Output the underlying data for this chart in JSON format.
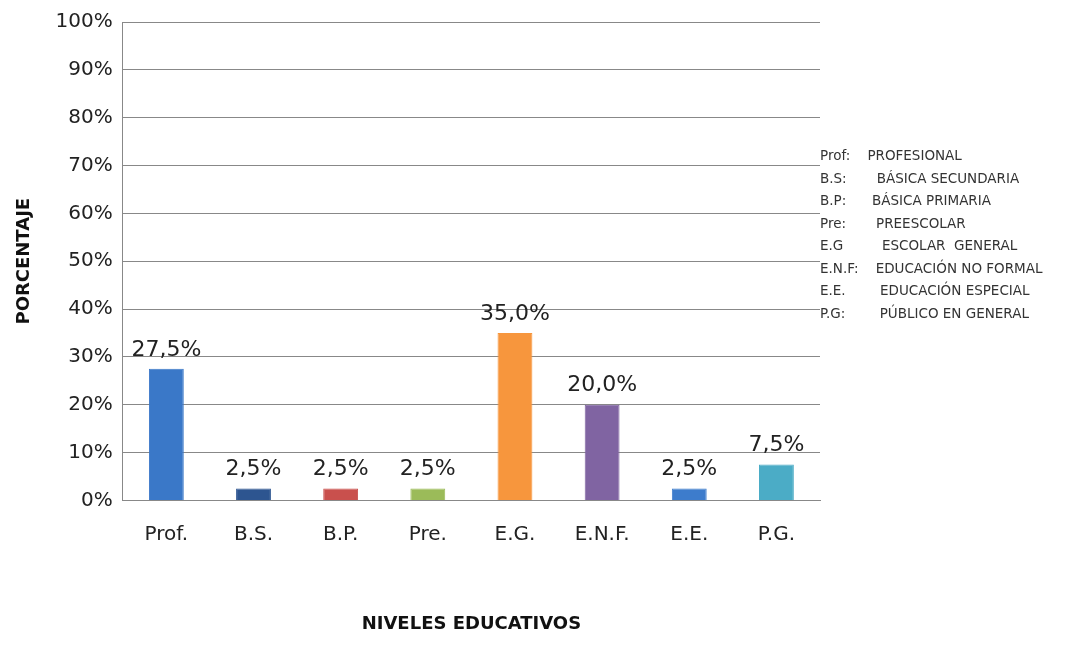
{
  "chart_data": {
    "type": "bar",
    "xlabel": "NIVELES EDUCATIVOS",
    "ylabel": "PORCENTAJE",
    "categories": [
      "Prof.",
      "B.S.",
      "B.P.",
      "Pre.",
      "E.G.",
      "E.N.F.",
      "E.E.",
      "P.G."
    ],
    "values": [
      27.5,
      2.5,
      2.5,
      2.5,
      35,
      20,
      2.5,
      7.5
    ],
    "colors": [
      "#3a78c8",
      "#2d5590",
      "#c9504d",
      "#9bbb59",
      "#f7963d",
      "#8064a2",
      "#3d7ccc",
      "#4bacc6"
    ],
    "value_labels": [
      "27,5%",
      "2,5%",
      "2,5%",
      "2,5%",
      "35,0%",
      "20,0%",
      "2,5%",
      "7,5%"
    ],
    "ylim": [
      0,
      100
    ],
    "yticks": [
      {
        "value": 0,
        "label": "0%"
      },
      {
        "value": 10,
        "label": "10%"
      },
      {
        "value": 20,
        "label": "20%"
      },
      {
        "value": 30,
        "label": "30%"
      },
      {
        "value": 40,
        "label": "40%"
      },
      {
        "value": 50,
        "label": "50%"
      },
      {
        "value": 60,
        "label": "60%"
      },
      {
        "value": 70,
        "label": "70%"
      },
      {
        "value": 80,
        "label": "80%"
      },
      {
        "value": 90,
        "label": "90%"
      },
      {
        "value": 100,
        "label": "100%"
      }
    ],
    "grid": "y",
    "legend": false,
    "annotations": [
      "Prof:    PROFESIONAL",
      "B.S:       BÁSICA SECUNDARIA",
      "B.P:      BÁSICA PRIMARIA",
      "Pre:       PREESCOLAR",
      "E.G         ESCOLAR  GENERAL",
      "E.N.F:    EDUCACIÓN NO FORMAL",
      "E.E.        EDUCACIÓN ESPECIAL",
      "P.G:        PÚBLICO EN GENERAL"
    ]
  }
}
